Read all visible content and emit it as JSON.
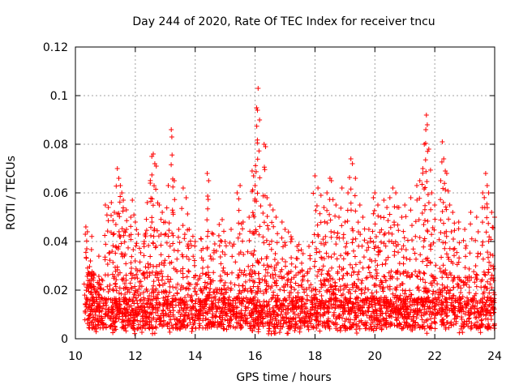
{
  "chart_data": {
    "type": "scatter",
    "title": "Day 244 of 2020, Rate Of TEC Index for receiver tncu",
    "xlabel": "GPS time / hours",
    "ylabel": "ROTI / TECUs",
    "xlim": [
      10,
      24
    ],
    "ylim": [
      0,
      0.12
    ],
    "xticks": [
      10,
      12,
      14,
      16,
      18,
      20,
      22,
      24
    ],
    "xtick_labels": [
      "10",
      "12",
      "14",
      "16",
      "18",
      "20",
      "22",
      "24"
    ],
    "yticks": [
      0,
      0.02,
      0.04,
      0.06,
      0.08,
      0.1,
      0.12
    ],
    "ytick_labels": [
      "0",
      "0.02",
      "0.04",
      "0.06",
      "0.08",
      "0.1",
      "0.12"
    ],
    "grid": true,
    "marker": "+",
    "color": "#ff0000",
    "series": [
      {
        "name": "ROTI",
        "points": [
          [
            10.35,
            0.046
          ],
          [
            10.4,
            0.044
          ],
          [
            10.5,
            0.032
          ],
          [
            10.45,
            0.027
          ],
          [
            10.6,
            0.025
          ],
          [
            10.8,
            0.024
          ],
          [
            11.0,
            0.055
          ],
          [
            11.1,
            0.054
          ],
          [
            11.2,
            0.056
          ],
          [
            11.3,
            0.052
          ],
          [
            11.35,
            0.047
          ],
          [
            11.4,
            0.07
          ],
          [
            11.45,
            0.066
          ],
          [
            11.5,
            0.063
          ],
          [
            11.55,
            0.06
          ],
          [
            11.6,
            0.057
          ],
          [
            11.7,
            0.053
          ],
          [
            11.85,
            0.05
          ],
          [
            11.9,
            0.057
          ],
          [
            12.0,
            0.048
          ],
          [
            12.1,
            0.043
          ],
          [
            12.3,
            0.04
          ],
          [
            12.4,
            0.056
          ],
          [
            12.5,
            0.064
          ],
          [
            12.55,
            0.075
          ],
          [
            12.6,
            0.076
          ],
          [
            12.65,
            0.072
          ],
          [
            12.7,
            0.071
          ],
          [
            12.8,
            0.055
          ],
          [
            12.9,
            0.052
          ],
          [
            13.0,
            0.048
          ],
          [
            13.1,
            0.063
          ],
          [
            13.2,
            0.086
          ],
          [
            13.22,
            0.083
          ],
          [
            13.3,
            0.065
          ],
          [
            13.45,
            0.045
          ],
          [
            13.6,
            0.062
          ],
          [
            13.7,
            0.058
          ],
          [
            13.8,
            0.045
          ],
          [
            14.0,
            0.04
          ],
          [
            14.2,
            0.041
          ],
          [
            14.4,
            0.068
          ],
          [
            14.45,
            0.065
          ],
          [
            14.6,
            0.043
          ],
          [
            14.8,
            0.047
          ],
          [
            14.9,
            0.049
          ],
          [
            15.0,
            0.04
          ],
          [
            15.2,
            0.045
          ],
          [
            15.4,
            0.06
          ],
          [
            15.5,
            0.063
          ],
          [
            15.6,
            0.048
          ],
          [
            15.8,
            0.05
          ],
          [
            15.9,
            0.069
          ],
          [
            15.95,
            0.067
          ],
          [
            16.0,
            0.063
          ],
          [
            16.05,
            0.095
          ],
          [
            16.08,
            0.094
          ],
          [
            16.1,
            0.103
          ],
          [
            16.15,
            0.09
          ],
          [
            16.3,
            0.08
          ],
          [
            16.35,
            0.079
          ],
          [
            16.4,
            0.058
          ],
          [
            16.5,
            0.055
          ],
          [
            16.6,
            0.053
          ],
          [
            16.7,
            0.05
          ],
          [
            16.9,
            0.048
          ],
          [
            17.0,
            0.045
          ],
          [
            17.2,
            0.042
          ],
          [
            17.4,
            0.038
          ],
          [
            17.6,
            0.035
          ],
          [
            17.8,
            0.038
          ],
          [
            18.0,
            0.067
          ],
          [
            18.1,
            0.062
          ],
          [
            18.2,
            0.059
          ],
          [
            18.3,
            0.054
          ],
          [
            18.4,
            0.06
          ],
          [
            18.5,
            0.066
          ],
          [
            18.55,
            0.065
          ],
          [
            18.7,
            0.055
          ],
          [
            18.8,
            0.05
          ],
          [
            18.9,
            0.062
          ],
          [
            19.0,
            0.048
          ],
          [
            19.1,
            0.06
          ],
          [
            19.2,
            0.074
          ],
          [
            19.25,
            0.072
          ],
          [
            19.35,
            0.066
          ],
          [
            19.5,
            0.055
          ],
          [
            19.6,
            0.05
          ],
          [
            19.8,
            0.045
          ],
          [
            19.95,
            0.058
          ],
          [
            20.0,
            0.06
          ],
          [
            20.1,
            0.055
          ],
          [
            20.2,
            0.05
          ],
          [
            20.3,
            0.057
          ],
          [
            20.4,
            0.054
          ],
          [
            20.5,
            0.058
          ],
          [
            20.6,
            0.062
          ],
          [
            20.7,
            0.06
          ],
          [
            20.8,
            0.054
          ],
          [
            20.9,
            0.05
          ],
          [
            21.0,
            0.055
          ],
          [
            21.2,
            0.058
          ],
          [
            21.4,
            0.063
          ],
          [
            21.5,
            0.065
          ],
          [
            21.6,
            0.07
          ],
          [
            21.65,
            0.08
          ],
          [
            21.7,
            0.086
          ],
          [
            21.72,
            0.092
          ],
          [
            21.75,
            0.088
          ],
          [
            21.8,
            0.078
          ],
          [
            21.9,
            0.06
          ],
          [
            22.0,
            0.055
          ],
          [
            22.2,
            0.065
          ],
          [
            22.25,
            0.081
          ],
          [
            22.3,
            0.074
          ],
          [
            22.35,
            0.069
          ],
          [
            22.4,
            0.068
          ],
          [
            22.5,
            0.055
          ],
          [
            22.6,
            0.052
          ],
          [
            22.8,
            0.048
          ],
          [
            23.0,
            0.045
          ],
          [
            23.2,
            0.052
          ],
          [
            23.4,
            0.05
          ],
          [
            23.6,
            0.06
          ],
          [
            23.7,
            0.068
          ],
          [
            23.75,
            0.063
          ],
          [
            23.8,
            0.06
          ],
          [
            23.9,
            0.052
          ],
          [
            24.0,
            0.05
          ]
        ],
        "dense_band": {
          "x_range": [
            10.3,
            24.0
          ],
          "typical_y_range": [
            0.003,
            0.035
          ],
          "median_y": 0.012,
          "description_level": "dense bulk of ROTI samples"
        }
      }
    ]
  }
}
